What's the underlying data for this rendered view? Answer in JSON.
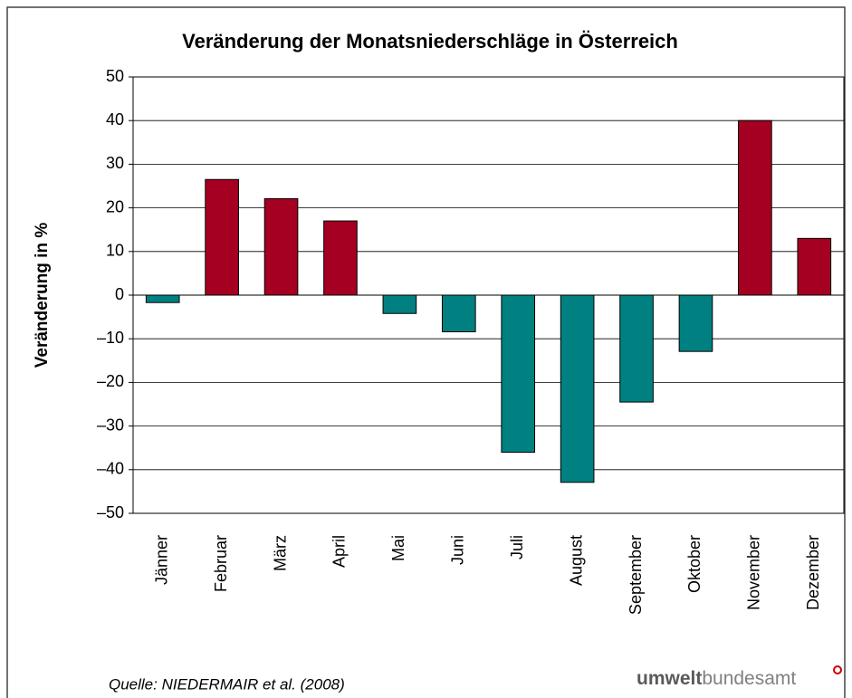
{
  "chart_data": {
    "type": "bar",
    "title": "Veränderung der Monatsniederschläge in Österreich",
    "y_label": "Veränderung in %",
    "categories": [
      "Jänner",
      "Februar",
      "März",
      "April",
      "Mai",
      "Juni",
      "Juli",
      "August",
      "September",
      "Oktober",
      "November",
      "Dezember"
    ],
    "values": [
      -1.7,
      26.5,
      22.1,
      17,
      -4.2,
      -8.4,
      -36,
      -42.9,
      -24.5,
      -12.9,
      40,
      13
    ],
    "colors": [
      "#008080",
      "#a50021",
      "#a50021",
      "#a50021",
      "#008080",
      "#008080",
      "#008080",
      "#008080",
      "#008080",
      "#008080",
      "#a50021",
      "#a50021"
    ],
    "ylim": [
      -50,
      50
    ],
    "yticks": [
      {
        "value": -50,
        "label": "–50"
      },
      {
        "value": -40,
        "label": "–40"
      },
      {
        "value": -30,
        "label": "–30"
      },
      {
        "value": -20,
        "label": "–20"
      },
      {
        "value": -10,
        "label": "–10"
      },
      0,
      10,
      20,
      30,
      40,
      50
    ],
    "grid": true,
    "source": "Quelle: NIEDERMAIR et al. (2008)"
  },
  "logo": {
    "bold": "umwelt",
    "rest": "bundesamt"
  }
}
